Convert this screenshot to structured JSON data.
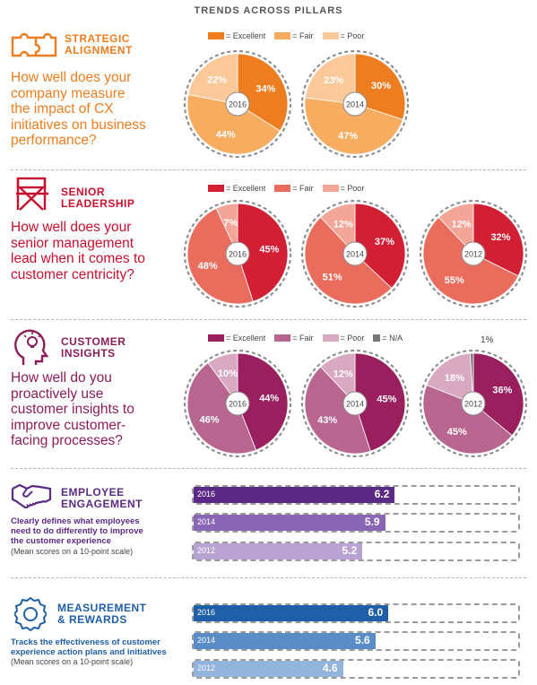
{
  "page_title": "TRENDS ACROSS PILLARS",
  "legend_labels": {
    "excellent": "= Excellent",
    "fair": "= Fair",
    "poor": "= Poor",
    "na": "= N/A"
  },
  "sections": [
    {
      "id": "strategic-alignment",
      "icon": "puzzle-icon",
      "title": "STRATEGIC\nALIGNMENT",
      "question": "How well does your\ncompany measure\nthe impact of CX\ninitiatives on business\nperformance?",
      "color": "#ee7d1f",
      "text_color": "#ee7d1f"
    },
    {
      "id": "senior-leadership",
      "icon": "directors-chair-icon",
      "title": "SENIOR\nLEADERSHIP",
      "question": "How well does your\nsenior management\nlead when it comes to\ncustomer centricity?",
      "color": "#c8102e",
      "text_color": "#c8102e"
    },
    {
      "id": "customer-insights",
      "icon": "lightbulb-head-icon",
      "title": "CUSTOMER\nINSIGHTS",
      "question": "How well do you\nproactively use\ncustomer insights to\nimprove customer-\nfacing processes?",
      "color": "#8c1d5a",
      "text_color": "#8c1d5a"
    },
    {
      "id": "employee-engagement",
      "icon": "handshake-icon",
      "title": "EMPLOYEE\nENGAGEMENT",
      "caption": "Clearly defines what employees\nneed to do differently to improve\nthe customer experience",
      "note": "(Mean scores on a 10-point scale)",
      "color": "#5b2a86",
      "text_color": "#5b2a86"
    },
    {
      "id": "measurement-rewards",
      "icon": "award-ribbon-icon",
      "title": "MEASUREMENT\n& REWARDS",
      "caption": "Tracks the effectiveness of customer\nexperience action plans and initiatives",
      "note": "(Mean scores on a 10-point scale)",
      "color": "#1f5fa8",
      "text_color": "#1f5fa8"
    }
  ],
  "chart_data": [
    {
      "type": "pie",
      "pillar": "STRATEGIC ALIGNMENT",
      "colors": {
        "excellent": "#ee7d1f",
        "fair": "#f7ac5f",
        "poor": "#fbc899"
      },
      "pies": [
        {
          "year": "2016",
          "excellent": 34,
          "fair": 44,
          "poor": 22,
          "na": 0
        },
        {
          "year": "2014",
          "excellent": 30,
          "fair": 47,
          "poor": 23,
          "na": 0
        }
      ]
    },
    {
      "type": "pie",
      "pillar": "SENIOR LEADERSHIP",
      "colors": {
        "excellent": "#d31f34",
        "fair": "#e96c5c",
        "poor": "#f3a598"
      },
      "pies": [
        {
          "year": "2016",
          "excellent": 45,
          "fair": 48,
          "poor": 7,
          "na": 0
        },
        {
          "year": "2014",
          "excellent": 37,
          "fair": 51,
          "poor": 12,
          "na": 0
        },
        {
          "year": "2012",
          "excellent": 32,
          "fair": 55,
          "poor": 12,
          "na": 0
        }
      ]
    },
    {
      "type": "pie",
      "pillar": "CUSTOMER INSIGHTS",
      "colors": {
        "excellent": "#9a1f5e",
        "fair": "#b8668f",
        "poor": "#d9a9c1",
        "na": "#777777"
      },
      "pies": [
        {
          "year": "2016",
          "excellent": 44,
          "fair": 46,
          "poor": 10,
          "na": 0
        },
        {
          "year": "2014",
          "excellent": 45,
          "fair": 43,
          "poor": 12,
          "na": 0
        },
        {
          "year": "2012",
          "excellent": 36,
          "fair": 45,
          "poor": 18,
          "na": 1
        }
      ]
    },
    {
      "type": "bar",
      "pillar": "EMPLOYEE ENGAGEMENT",
      "categories": [
        "2016",
        "2014",
        "2012"
      ],
      "values": [
        6.2,
        5.9,
        5.2
      ],
      "colors": [
        "#5b2a86",
        "#8866b4",
        "#b8a3d3"
      ],
      "xlim": [
        0,
        10
      ]
    },
    {
      "type": "bar",
      "pillar": "MEASUREMENT & REWARDS",
      "categories": [
        "2016",
        "2014",
        "2012"
      ],
      "values": [
        6.0,
        5.6,
        4.6
      ],
      "colors": [
        "#1f5fa8",
        "#5a8dc8",
        "#93b4dd"
      ],
      "xlim": [
        0,
        10
      ]
    }
  ]
}
